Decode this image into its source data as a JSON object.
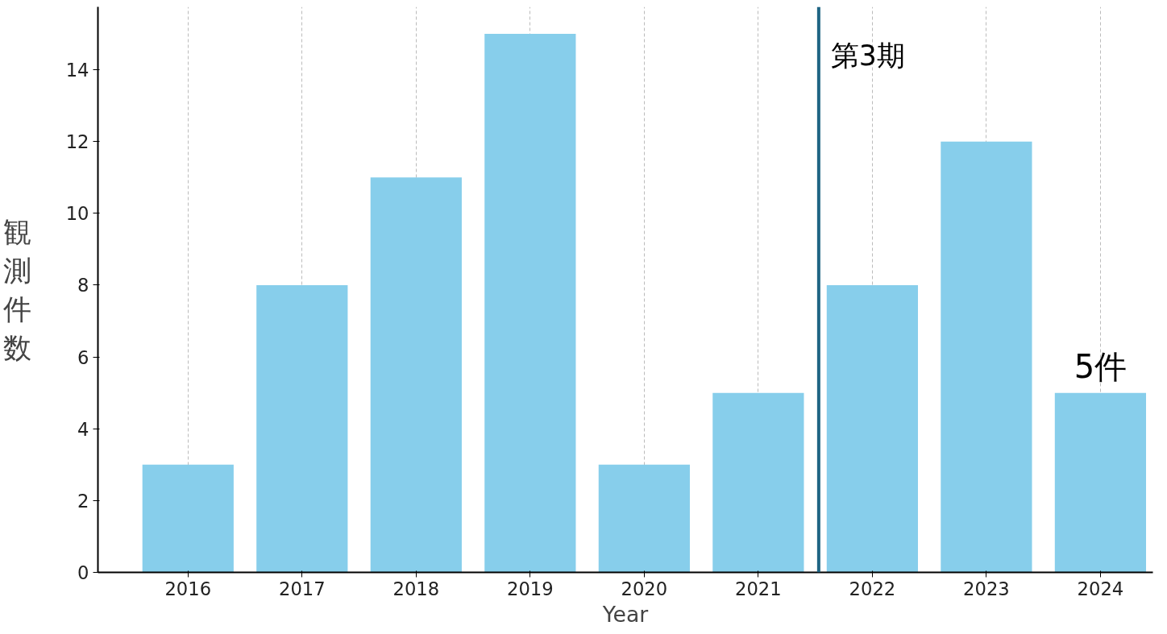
{
  "chart_data": {
    "type": "bar",
    "xlabel": "Year",
    "ylabel": "観測件数",
    "x": [
      2016,
      2017,
      2018,
      2019,
      2020,
      2021,
      2022,
      2023,
      2024
    ],
    "values": [
      3,
      8,
      11,
      15,
      3,
      5,
      8,
      12,
      5
    ],
    "value_labels": [
      null,
      null,
      null,
      null,
      null,
      null,
      null,
      null,
      "5件"
    ],
    "color": "#87ceeb",
    "xlim": [
      2015.21,
      2024.46
    ],
    "xticks": [
      2016,
      2017,
      2018,
      2019,
      2020,
      2021,
      2022,
      2023,
      2024
    ],
    "ylim": [
      0,
      15.75
    ],
    "yticks": [
      0,
      2,
      4,
      6,
      8,
      10,
      12,
      14
    ],
    "grid": "x",
    "ref_lines": [
      {
        "axis": "x",
        "value": 2021.53,
        "label": "第3期",
        "color": "#1f6584"
      }
    ]
  }
}
